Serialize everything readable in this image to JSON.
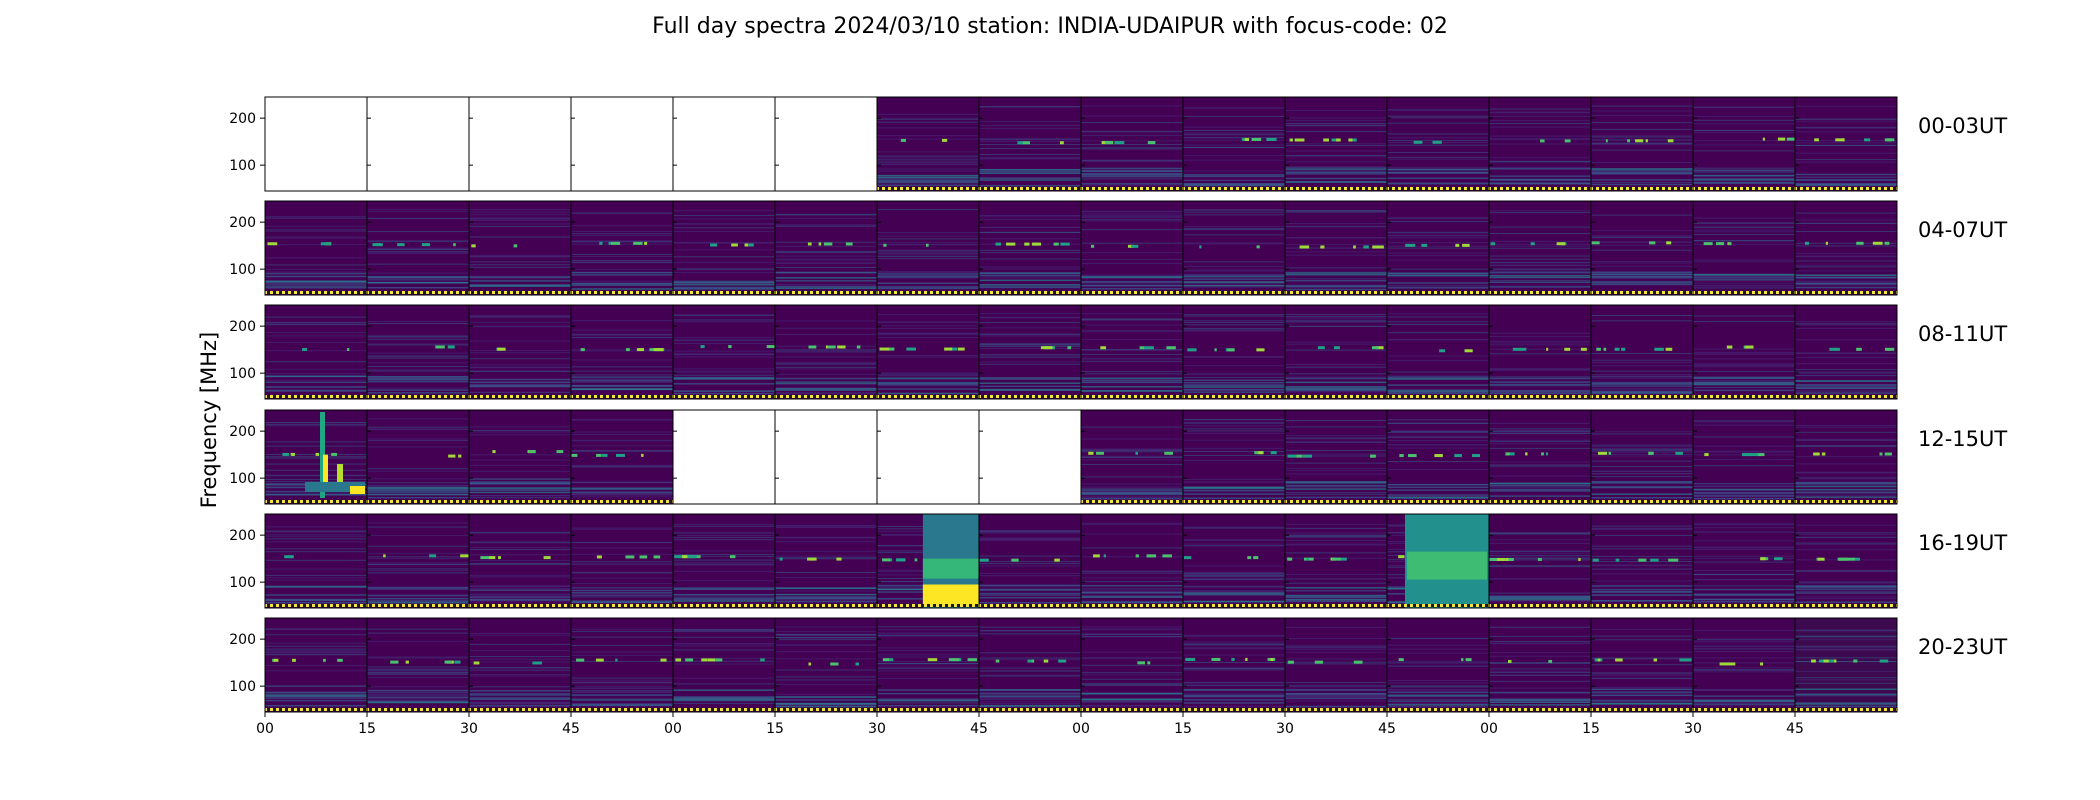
{
  "chart_data": {
    "type": "heatmap",
    "title": "Full day spectra 2024/03/10 station: INDIA-UDAIPUR with focus-code: 02",
    "ylabel": "Frequency [MHz]",
    "xlabel": "",
    "ylim": [
      45,
      245
    ],
    "y_ticks": [
      "100",
      "200"
    ],
    "y_tick_values": [
      100,
      200
    ],
    "x_tick_labels": [
      "00",
      "15",
      "30",
      "45",
      "00",
      "15",
      "30",
      "45",
      "00",
      "15",
      "30",
      "45",
      "00",
      "15",
      "30",
      "45"
    ],
    "colormap": "viridis",
    "panels_per_row": 16,
    "panel_minutes": 15,
    "rows": [
      {
        "label": "00-03UT",
        "empty": [
          0,
          1,
          2,
          3,
          4,
          5
        ],
        "partial": {},
        "hot": {},
        "blank_right": {}
      },
      {
        "label": "04-07UT",
        "empty": [],
        "partial": {},
        "hot": {},
        "blank_right": {}
      },
      {
        "label": "08-11UT",
        "empty": [],
        "partial": {},
        "hot": {},
        "blank_right": {}
      },
      {
        "label": "12-15UT",
        "empty": [
          4,
          5,
          6,
          7
        ],
        "partial": {},
        "hot": {
          "0": "burst"
        },
        "blank_right": {}
      },
      {
        "label": "16-19UT",
        "empty": [],
        "partial": {},
        "hot": {
          "6": "rfi_strong",
          "11": "rfi_teal"
        },
        "blank_right": {}
      },
      {
        "label": "20-23UT",
        "empty": [],
        "partial": {},
        "hot": {
          "15": "dark"
        },
        "blank_right": {}
      }
    ]
  }
}
